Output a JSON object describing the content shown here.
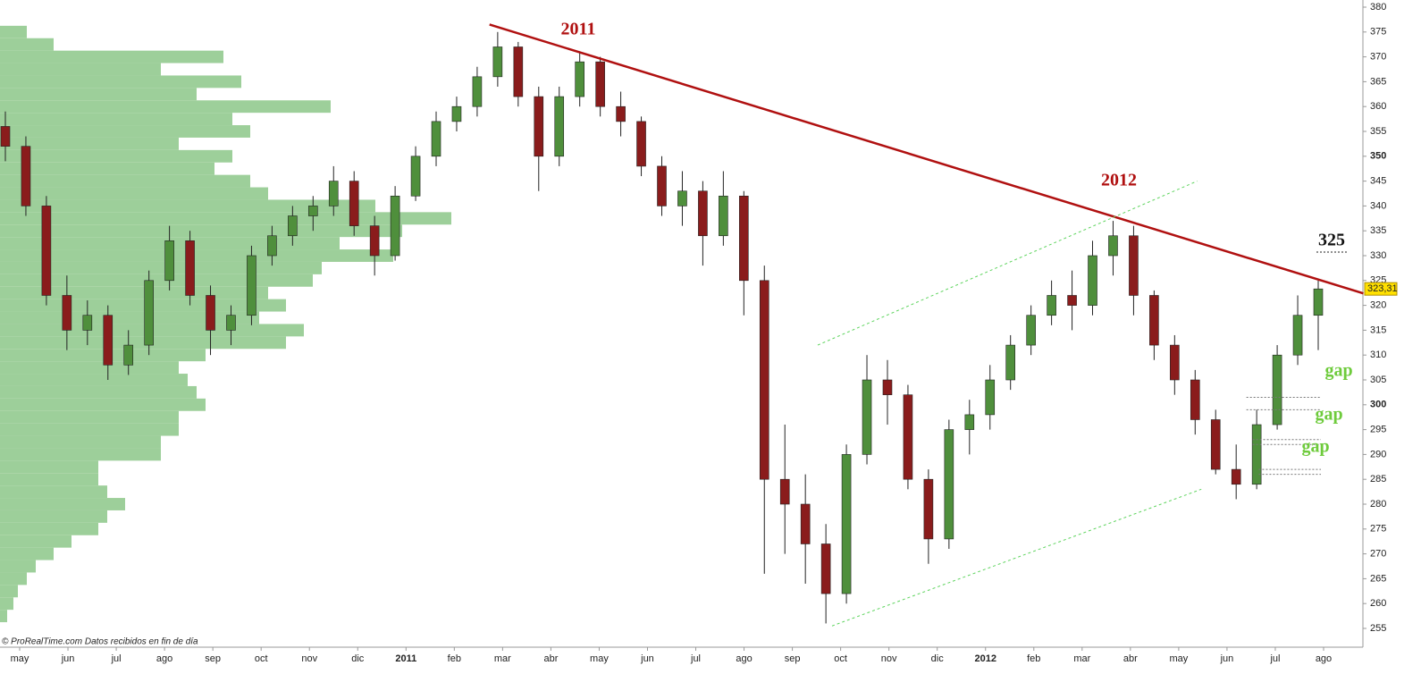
{
  "chart_data": {
    "type": "candlestick",
    "closes_start": 356,
    "candles": [
      [
        356,
        359,
        349,
        352
      ],
      [
        352,
        354,
        338,
        340
      ],
      [
        340,
        342,
        320,
        322
      ],
      [
        322,
        326,
        311,
        315
      ],
      [
        315,
        321,
        312,
        318
      ],
      [
        318,
        320,
        305,
        308
      ],
      [
        308,
        315,
        306,
        312
      ],
      [
        312,
        327,
        310,
        325
      ],
      [
        325,
        336,
        323,
        333
      ],
      [
        333,
        335,
        320,
        322
      ],
      [
        322,
        324,
        310,
        315
      ],
      [
        315,
        320,
        312,
        318
      ],
      [
        318,
        332,
        316,
        330
      ],
      [
        330,
        336,
        328,
        334
      ],
      [
        334,
        340,
        332,
        338
      ],
      [
        338,
        342,
        335,
        340
      ],
      [
        340,
        348,
        338,
        345
      ],
      [
        345,
        347,
        334,
        336
      ],
      [
        336,
        338,
        326,
        330
      ],
      [
        330,
        344,
        329,
        342
      ],
      [
        342,
        352,
        341,
        350
      ],
      [
        350,
        359,
        348,
        357
      ],
      [
        357,
        362,
        355,
        360
      ],
      [
        360,
        368,
        358,
        366
      ],
      [
        366,
        375,
        364,
        372
      ],
      [
        372,
        373,
        360,
        362
      ],
      [
        362,
        364,
        343,
        350
      ],
      [
        350,
        364,
        348,
        362
      ],
      [
        362,
        371,
        360,
        369
      ],
      [
        369,
        370,
        358,
        360
      ],
      [
        360,
        363,
        354,
        357
      ],
      [
        357,
        358,
        346,
        348
      ],
      [
        348,
        350,
        338,
        340
      ],
      [
        340,
        347,
        336,
        343
      ],
      [
        343,
        345,
        328,
        334
      ],
      [
        334,
        347,
        332,
        342
      ],
      [
        342,
        343,
        318,
        325
      ],
      [
        325,
        328,
        266,
        285
      ],
      [
        285,
        296,
        270,
        280
      ],
      [
        280,
        286,
        264,
        272
      ],
      [
        272,
        276,
        256,
        262
      ],
      [
        262,
        292,
        260,
        290
      ],
      [
        290,
        310,
        288,
        305
      ],
      [
        305,
        309,
        296,
        302
      ],
      [
        302,
        304,
        283,
        285
      ],
      [
        285,
        287,
        268,
        273
      ],
      [
        273,
        297,
        271,
        295
      ],
      [
        295,
        301,
        290,
        298
      ],
      [
        298,
        308,
        295,
        305
      ],
      [
        305,
        314,
        303,
        312
      ],
      [
        312,
        320,
        310,
        318
      ],
      [
        318,
        325,
        316,
        322
      ],
      [
        322,
        327,
        315,
        320
      ],
      [
        320,
        333,
        318,
        330
      ],
      [
        330,
        337,
        326,
        334
      ],
      [
        334,
        336,
        318,
        322
      ],
      [
        322,
        323,
        309,
        312
      ],
      [
        312,
        314,
        302,
        305
      ],
      [
        305,
        307,
        294,
        297
      ],
      [
        297,
        299,
        286,
        287
      ],
      [
        287,
        292,
        281,
        284
      ],
      [
        284,
        299,
        283,
        296
      ],
      [
        296,
        312,
        295,
        310
      ],
      [
        310,
        322,
        308,
        318
      ],
      [
        318,
        325,
        311,
        323.31
      ]
    ],
    "profile": {
      "levels": [
        375,
        372.5,
        370,
        367.5,
        365,
        362.5,
        360,
        357.5,
        355,
        352.5,
        350,
        347.5,
        345,
        342.5,
        340,
        337.5,
        335,
        332.5,
        330,
        327.5,
        325,
        322.5,
        320,
        317.5,
        315,
        312.5,
        310,
        307.5,
        305,
        302.5,
        300,
        297.5,
        295,
        292.5,
        290,
        287.5,
        285,
        282.5,
        280,
        277.5,
        275,
        272.5,
        270,
        267.5,
        265,
        262.5,
        260,
        257.5
      ],
      "volumes": [
        30,
        60,
        250,
        180,
        270,
        220,
        370,
        260,
        280,
        200,
        260,
        240,
        280,
        300,
        420,
        505,
        450,
        380,
        440,
        360,
        350,
        300,
        320,
        290,
        340,
        320,
        230,
        200,
        210,
        220,
        230,
        200,
        200,
        180,
        180,
        110,
        110,
        120,
        140,
        120,
        110,
        80,
        60,
        40,
        30,
        20,
        15,
        8
      ],
      "color": "#9dcf9a"
    },
    "lines": [
      {
        "from": [
          23.6,
          376.5
        ],
        "to": [
          66.2,
          322.4
        ],
        "color": "#b01010",
        "style": "solid"
      },
      {
        "from": [
          39.6,
          312
        ],
        "to": [
          58.1,
          345
        ],
        "color": "#5ed45e",
        "style": "dashed"
      },
      {
        "from": [
          40.3,
          255.5
        ],
        "to": [
          58.3,
          283
        ],
        "color": "#5ed45e",
        "style": "dashed"
      }
    ],
    "gaps": [
      [
        301.5,
        299
      ],
      [
        293,
        292
      ],
      [
        287,
        286
      ]
    ],
    "annotations": [
      "2011",
      "2012",
      "325",
      "gap",
      "gap",
      "gap"
    ],
    "last_value": 323.31,
    "value_labels": [
      "323,31"
    ],
    "categories": [
      "may",
      "jun",
      "jul",
      "ago",
      "sep",
      "oct",
      "nov",
      "dic",
      "2011",
      "feb",
      "mar",
      "abr",
      "may",
      "jun",
      "jul",
      "ago",
      "sep",
      "oct",
      "nov",
      "dic",
      "2012",
      "feb",
      "mar",
      "abr",
      "may",
      "jun",
      "jul",
      "ago"
    ],
    "ylim": [
      253,
      382
    ],
    "yticks": [
      255,
      260,
      265,
      270,
      275,
      280,
      285,
      290,
      295,
      300,
      305,
      310,
      315,
      320,
      325,
      330,
      335,
      340,
      345,
      350,
      355,
      360,
      365,
      370,
      375,
      380
    ],
    "bold_ticks": [
      300,
      350
    ],
    "up_color": "#4f8f3c",
    "down_color": "#8a1c1c",
    "footer": "© ProRealTime.com  Datos recibidos en fin de día"
  }
}
